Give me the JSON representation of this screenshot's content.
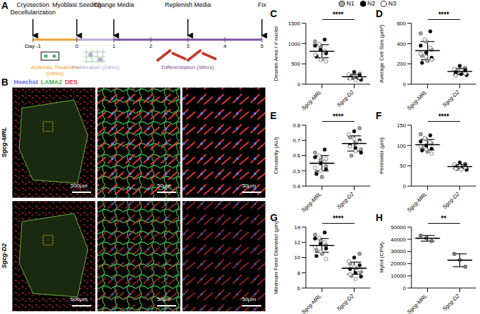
{
  "figure": {
    "panel_a": {
      "letter": "A",
      "events": [
        {
          "label": "Cryosection Decellularization",
          "day": -1
        },
        {
          "label": "Myoblast Seeding",
          "day": 0
        },
        {
          "label": "Change Media",
          "day": 1
        },
        {
          "label": "Replenish Media",
          "day": 3
        },
        {
          "label": "Fix",
          "day": 5
        }
      ],
      "days": [
        -1,
        0,
        1,
        2,
        3,
        4,
        5
      ],
      "day_labels": [
        "Day -1",
        "0",
        "1",
        "2",
        "3",
        "4",
        "5"
      ],
      "phases": [
        {
          "label": "Antibiotic Treatment (24hrs)",
          "start": -1,
          "end": 0,
          "color": "#f0a12b"
        },
        {
          "label": "Proliferation (24hrs)",
          "start": 0,
          "end": 1,
          "color": "#b7a2d8"
        },
        {
          "label": "Differentiation (96hrs)",
          "start": 1,
          "end": 5,
          "color": "#7e4fa3"
        }
      ]
    },
    "panel_b": {
      "letter": "B",
      "stains": [
        {
          "label": "Hoechst",
          "color": "#4f6ff5"
        },
        {
          "label": "LAMA2",
          "color": "#3fb54a"
        },
        {
          "label": "DES",
          "color": "#e8323c"
        }
      ],
      "rows": [
        "Sgcg-MRL",
        "Sgcg-D2"
      ],
      "scale_bars": [
        "500µm",
        "50µm",
        "50µm"
      ]
    }
  },
  "chart_data": [
    {
      "panel": "C",
      "type": "scatter",
      "y_label": "Desmin Area / # nuclei",
      "categories": [
        "Sgcg-MRL",
        "Sgcg-D2"
      ],
      "series": [
        {
          "name": "N1",
          "color": "#a6a6a6",
          "marker": "circle",
          "values": [
            [
              1050,
              900,
              780,
              700,
              620
            ],
            [
              260,
              200,
              150,
              120,
              180
            ]
          ]
        },
        {
          "name": "N2",
          "color": "#000000",
          "marker": "circle",
          "values": [
            [
              1100,
              950,
              850,
              760,
              680
            ],
            [
              300,
              220,
              170,
              130,
              110
            ]
          ]
        },
        {
          "name": "N3",
          "color": "#ffffff",
          "marker": "circle",
          "values": [
            [
              980,
              820,
              720,
              600,
              560
            ],
            [
              240,
              190,
              160,
              140,
              100
            ]
          ]
        }
      ],
      "mean": [
        810,
        180
      ],
      "sd": [
        160,
        60
      ],
      "ylim": [
        0,
        1500
      ],
      "yticks": [
        0,
        500,
        1000,
        1500
      ],
      "significance": "****"
    },
    {
      "panel": "D",
      "type": "scatter",
      "y_label": "Average Cell Size (µm²)",
      "categories": [
        "Sgcg-MRL",
        "Sgcg-D2"
      ],
      "series": [
        {
          "name": "N1",
          "color": "#a6a6a6",
          "marker": "circle",
          "values": [
            [
              500,
              420,
              340,
              280,
              230
            ],
            [
              160,
              130,
              110,
              95,
              120
            ]
          ]
        },
        {
          "name": "N2",
          "color": "#000000",
          "marker": "circle",
          "values": [
            [
              520,
              380,
              310,
              260,
              210
            ],
            [
              180,
              140,
              115,
              100,
              90
            ]
          ]
        },
        {
          "name": "N3",
          "color": "#ffffff",
          "marker": "circle",
          "values": [
            [
              440,
              360,
              300,
              270,
              240
            ],
            [
              150,
              125,
              105,
              85,
              135
            ]
          ]
        }
      ],
      "mean": [
        330,
        125
      ],
      "sd": [
        90,
        30
      ],
      "ylim": [
        0,
        600
      ],
      "yticks": [
        0,
        200,
        400,
        600
      ],
      "significance": "****"
    },
    {
      "panel": "E",
      "type": "scatter",
      "y_label": "Circularity (AU)",
      "categories": [
        "Sgcg-MRL",
        "Sgcg-D2"
      ],
      "series": [
        {
          "name": "N1",
          "color": "#a6a6a6",
          "marker": "circle",
          "values": [
            [
              0.62,
              0.57,
              0.53,
              0.49,
              0.46
            ],
            [
              0.78,
              0.72,
              0.68,
              0.64,
              0.6
            ]
          ]
        },
        {
          "name": "N2",
          "color": "#000000",
          "marker": "circle",
          "values": [
            [
              0.64,
              0.59,
              0.55,
              0.51,
              0.48
            ],
            [
              0.76,
              0.7,
              0.67,
              0.65,
              0.62
            ]
          ]
        },
        {
          "name": "N3",
          "color": "#ffffff",
          "marker": "circle",
          "values": [
            [
              0.6,
              0.56,
              0.52,
              0.5,
              0.58
            ],
            [
              0.74,
              0.71,
              0.69,
              0.66,
              0.63
            ]
          ]
        }
      ],
      "mean": [
        0.55,
        0.68
      ],
      "sd": [
        0.05,
        0.05
      ],
      "ylim": [
        0.4,
        0.8
      ],
      "yticks": [
        0.4,
        0.5,
        0.6,
        0.7,
        0.8
      ],
      "significance": "****"
    },
    {
      "panel": "F",
      "type": "scatter",
      "y_label": "Perimeter (µm)",
      "categories": [
        "Sgcg-MRL",
        "Sgcg-D2"
      ],
      "series": [
        {
          "name": "N1",
          "color": "#a6a6a6",
          "marker": "circle",
          "values": [
            [
              128,
              115,
              105,
              95,
              85
            ],
            [
              55,
              50,
              47,
              44,
              42
            ]
          ]
        },
        {
          "name": "N2",
          "color": "#000000",
          "marker": "circle",
          "values": [
            [
              125,
              110,
              100,
              92,
              88
            ],
            [
              58,
              52,
              48,
              45,
              40
            ]
          ]
        },
        {
          "name": "N3",
          "color": "#ffffff",
          "marker": "circle",
          "values": [
            [
              118,
              108,
              98,
              90,
              80
            ],
            [
              54,
              49,
              46,
              43,
              41
            ]
          ]
        }
      ],
      "mean": [
        102,
        48
      ],
      "sd": [
        13,
        5
      ],
      "ylim": [
        0,
        150
      ],
      "yticks": [
        0,
        50,
        100,
        150
      ],
      "significance": "****"
    },
    {
      "panel": "G",
      "type": "scatter",
      "y_label": "Minimum Feret Diameter (µm)",
      "categories": [
        "Sgcg-MRL",
        "Sgcg-D2"
      ],
      "series": [
        {
          "name": "N1",
          "color": "#a6a6a6",
          "marker": "circle",
          "values": [
            [
              13,
              12.2,
              11.6,
              11,
              10.5
            ],
            [
              10.5,
              9.2,
              8.6,
              8.1,
              7.6
            ]
          ]
        },
        {
          "name": "N2",
          "color": "#000000",
          "marker": "circle",
          "values": [
            [
              13.3,
              12.5,
              11.8,
              11.2,
              10.2
            ],
            [
              10,
              9,
              8.5,
              8,
              7.5
            ]
          ]
        },
        {
          "name": "N3",
          "color": "#ffffff",
          "marker": "circle",
          "values": [
            [
              12.6,
              12,
              11.4,
              10.8,
              9.8
            ],
            [
              9.5,
              8.8,
              8.4,
              7.8,
              7.2
            ]
          ]
        }
      ],
      "mean": [
        11.6,
        8.6
      ],
      "sd": [
        0.9,
        0.8
      ],
      "ylim": [
        6,
        14
      ],
      "yticks": [
        6,
        8,
        10,
        12,
        14
      ],
      "significance": "****"
    },
    {
      "panel": "H",
      "type": "scatter",
      "y_label": "Myh4 (CPM)",
      "categories": [
        "Sgcg-MRL",
        "Sgcg-D2"
      ],
      "color": "#7f7f7f",
      "marker": "circle",
      "values": [
        [
          43000,
          41000,
          38500
        ],
        [
          28000,
          23000,
          17500
        ]
      ],
      "mean": [
        40800,
        22800
      ],
      "sd": [
        2300,
        5300
      ],
      "ylim": [
        0,
        50000
      ],
      "yticks": [
        0,
        10000,
        20000,
        30000,
        40000,
        50000
      ],
      "significance": "**"
    }
  ]
}
